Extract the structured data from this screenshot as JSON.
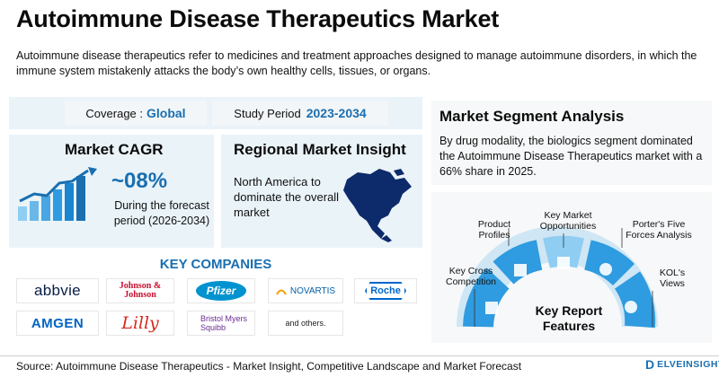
{
  "header": {
    "title": "Autoimmune Disease Therapeutics Market",
    "description": "Autoimmune disease therapeutics refer to medicines and treatment approaches designed to manage autoimmune disorders, in which the immune system mistakenly attacks the body’s own healthy cells, tissues, or organs."
  },
  "coverage": {
    "label": "Coverage :",
    "value": "Global"
  },
  "study_period": {
    "label": "Study Period",
    "value": "2023-2034"
  },
  "market_cagr": {
    "title": "Market CAGR",
    "value": "~08%",
    "subtitle": "During the forecast period (2026-2034)"
  },
  "regional_insight": {
    "title": "Regional Market Insight",
    "text": "North America to dominate the overall market"
  },
  "key_companies": {
    "title": "KEY COMPANIES",
    "logos": [
      "abbvie",
      "Johnson & Johnson",
      "Pfizer",
      "NOVARTIS",
      "Roche",
      "AMGEN",
      "Lilly",
      "Bristol Myers Squibb",
      "and others."
    ]
  },
  "segment_analysis": {
    "title": "Market Segment Analysis",
    "text": "By drug modality, the biologics segment dominated the Autoimmune Disease Therapeutics market with a 66% share in 2025."
  },
  "key_report_features": {
    "center_label": "Key Report Features",
    "items": [
      "Key Cross Competition",
      "Product Profiles",
      "Key Market Opportunities",
      "Porter's Five Forces Analysis",
      "KOL's Views"
    ]
  },
  "footer": {
    "source": "Source: Autoimmune Disease Therapeutics - Market Insight, Competitive Landscape and Market Forecast",
    "brand": "ELVEINSIGHT"
  },
  "colors": {
    "accent_blue": "#1a6fb0",
    "panel_bg": "#eaf3f8",
    "arc_blue": "#2f9be0",
    "arc_light": "#8fcdf2"
  }
}
